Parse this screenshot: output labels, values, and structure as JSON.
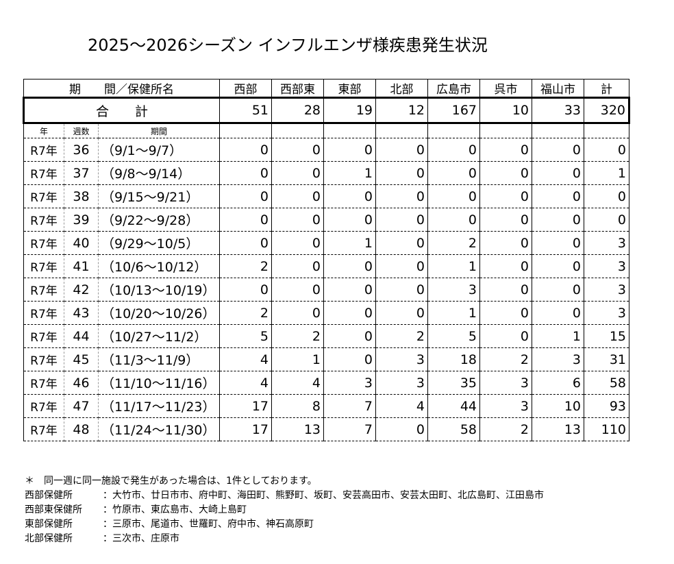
{
  "title": "2025～2026シーズン インフルエンザ様疾患発生状況",
  "header": {
    "period_label": "期　　間／保健所名",
    "columns": [
      "西部",
      "西部東",
      "東部",
      "北部",
      "広島市",
      "呉市",
      "福山市",
      "計"
    ]
  },
  "total_row": {
    "label": "合　　計",
    "values": [
      "51",
      "28",
      "19",
      "12",
      "167",
      "10",
      "33",
      "320"
    ]
  },
  "sub_header": {
    "year": "年",
    "week": "週数",
    "period": "期間"
  },
  "rows": [
    {
      "year": "R7年",
      "week": "36",
      "period": "（9/1～9/7）",
      "values": [
        "0",
        "0",
        "0",
        "0",
        "0",
        "0",
        "0",
        "0"
      ]
    },
    {
      "year": "R7年",
      "week": "37",
      "period": "（9/8～9/14）",
      "values": [
        "0",
        "0",
        "1",
        "0",
        "0",
        "0",
        "0",
        "1"
      ]
    },
    {
      "year": "R7年",
      "week": "38",
      "period": "（9/15～9/21）",
      "values": [
        "0",
        "0",
        "0",
        "0",
        "0",
        "0",
        "0",
        "0"
      ]
    },
    {
      "year": "R7年",
      "week": "39",
      "period": "（9/22～9/28）",
      "values": [
        "0",
        "0",
        "0",
        "0",
        "0",
        "0",
        "0",
        "0"
      ]
    },
    {
      "year": "R7年",
      "week": "40",
      "period": "（9/29～10/5）",
      "values": [
        "0",
        "0",
        "1",
        "0",
        "2",
        "0",
        "0",
        "3"
      ]
    },
    {
      "year": "R7年",
      "week": "41",
      "period": "（10/6～10/12）",
      "values": [
        "2",
        "0",
        "0",
        "0",
        "1",
        "0",
        "0",
        "3"
      ]
    },
    {
      "year": "R7年",
      "week": "42",
      "period": "（10/13～10/19）",
      "values": [
        "0",
        "0",
        "0",
        "0",
        "3",
        "0",
        "0",
        "3"
      ]
    },
    {
      "year": "R7年",
      "week": "43",
      "period": "（10/20～10/26）",
      "values": [
        "2",
        "0",
        "0",
        "0",
        "1",
        "0",
        "0",
        "3"
      ]
    },
    {
      "year": "R7年",
      "week": "44",
      "period": "（10/27～11/2）",
      "values": [
        "5",
        "2",
        "0",
        "2",
        "5",
        "0",
        "1",
        "15"
      ]
    },
    {
      "year": "R7年",
      "week": "45",
      "period": "（11/3～11/9）",
      "values": [
        "4",
        "1",
        "0",
        "3",
        "18",
        "2",
        "3",
        "31"
      ]
    },
    {
      "year": "R7年",
      "week": "46",
      "period": "（11/10～11/16）",
      "values": [
        "4",
        "4",
        "3",
        "3",
        "35",
        "3",
        "6",
        "58"
      ]
    },
    {
      "year": "R7年",
      "week": "47",
      "period": "（11/17～11/23）",
      "values": [
        "17",
        "8",
        "7",
        "4",
        "44",
        "3",
        "10",
        "93"
      ]
    },
    {
      "year": "R7年",
      "week": "48",
      "period": "（11/24～11/30）",
      "values": [
        "17",
        "13",
        "7",
        "0",
        "58",
        "2",
        "13",
        "110"
      ]
    }
  ],
  "notes": {
    "footnote": "＊　同一週に同一施設で発生があった場合は、1件としております。",
    "areas": [
      {
        "label": "西部保健所",
        "value": "：大竹市、廿日市市、府中町、海田町、熊野町、坂町、安芸高田市、安芸太田町、北広島町、江田島市"
      },
      {
        "label": "西部東保健所",
        "value": "：竹原市、東広島市、大崎上島町"
      },
      {
        "label": "東部保健所",
        "value": "：三原市、尾道市、世羅町、府中市、神石高原町"
      },
      {
        "label": "北部保健所",
        "value": "：三次市、庄原市"
      }
    ]
  }
}
